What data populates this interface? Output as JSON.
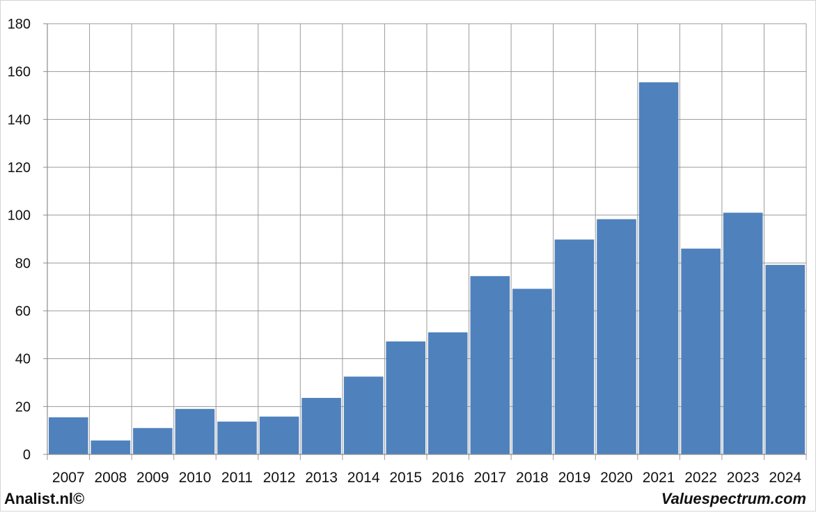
{
  "chart_data": {
    "type": "bar",
    "title": "",
    "xlabel": "",
    "ylabel": "",
    "categories": [
      "2007",
      "2008",
      "2009",
      "2010",
      "2011",
      "2012",
      "2013",
      "2014",
      "2015",
      "2016",
      "2017",
      "2018",
      "2019",
      "2020",
      "2021",
      "2022",
      "2023",
      "2024"
    ],
    "values": [
      15.5,
      5.8,
      11,
      19,
      13.7,
      15.8,
      23.6,
      32.5,
      47.2,
      51,
      74.5,
      69.2,
      89.8,
      98.3,
      155.5,
      86,
      101,
      79.2
    ],
    "ylim": [
      0,
      180
    ],
    "yticks": [
      0,
      20,
      40,
      60,
      80,
      100,
      120,
      140,
      160,
      180
    ],
    "grid": true,
    "bar_color": "#4f81bd"
  },
  "footer": {
    "left": "Analist.nl©",
    "right": "Valuespectrum.com"
  }
}
